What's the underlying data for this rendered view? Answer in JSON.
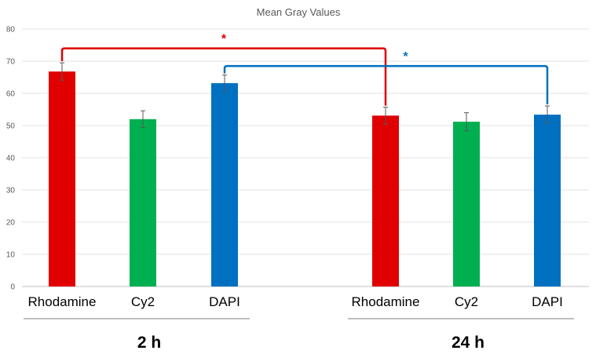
{
  "chart_data": {
    "type": "bar",
    "title": "Mean Gray Values",
    "xlabel": "",
    "ylabel": "",
    "ylim": [
      0,
      80
    ],
    "yticks": [
      0,
      10,
      20,
      30,
      40,
      50,
      60,
      70,
      80
    ],
    "grid": true,
    "colors": {
      "Rhodamine": "#e00000",
      "Cy2": "#00b050",
      "DAPI": "#0070c0"
    },
    "groups": [
      {
        "label": "2 h",
        "bars": [
          {
            "name": "Rhodamine",
            "value": 66.8,
            "error": 2.7
          },
          {
            "name": "Cy2",
            "value": 52.0,
            "error": 2.6
          },
          {
            "name": "DAPI",
            "value": 63.2,
            "error": 2.5
          }
        ]
      },
      {
        "label": "24 h",
        "bars": [
          {
            "name": "Rhodamine",
            "value": 53.1,
            "error": 2.6
          },
          {
            "name": "Cy2",
            "value": 51.2,
            "error": 2.8
          },
          {
            "name": "DAPI",
            "value": 53.4,
            "error": 2.7
          }
        ]
      }
    ],
    "significance": [
      {
        "from": "2 h Rhodamine",
        "to": "24 h Rhodamine",
        "label": "*",
        "color": "#e00000",
        "level": 74
      },
      {
        "from": "2 h DAPI",
        "to": "24 h DAPI",
        "label": "*",
        "color": "#0070c0",
        "level": 68.5
      }
    ]
  }
}
